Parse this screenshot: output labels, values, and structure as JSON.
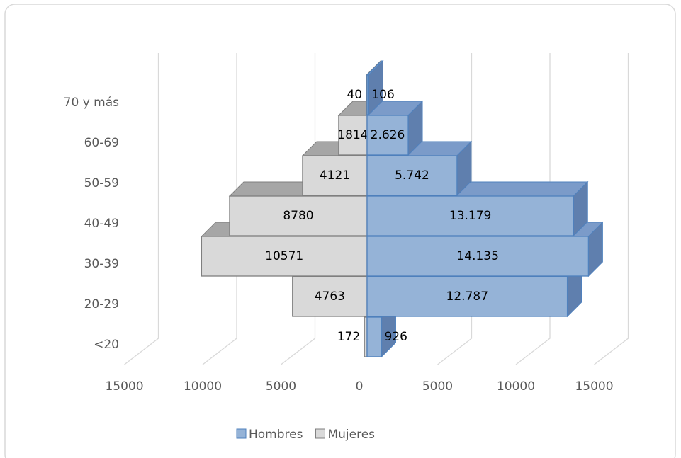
{
  "chart_data": {
    "type": "pyramid3d",
    "categories": [
      "<20",
      "20-29",
      "30-39",
      "40-49",
      "50-59",
      "60-69",
      "70 y más"
    ],
    "series": [
      {
        "name": "Hombres",
        "color": "#95b3d7",
        "values": [
          926,
          12787,
          14135,
          13179,
          5742,
          2626,
          106
        ],
        "value_labels": [
          "926",
          "12.787",
          "14.135",
          "13.179",
          "5.742",
          "2.626",
          "106"
        ]
      },
      {
        "name": "Mujeres",
        "color": "#d9d9d9",
        "values": [
          172,
          4763,
          10571,
          8780,
          4121,
          1814,
          40
        ]
      }
    ],
    "xlim": [
      -15000,
      15000
    ],
    "xticks": [
      {
        "value": -15000,
        "label": "15000"
      },
      {
        "value": -10000,
        "label": "10000"
      },
      {
        "value": -5000,
        "label": "5000"
      },
      0,
      5000,
      10000,
      15000
    ],
    "grid": true,
    "legend": "bottom"
  }
}
